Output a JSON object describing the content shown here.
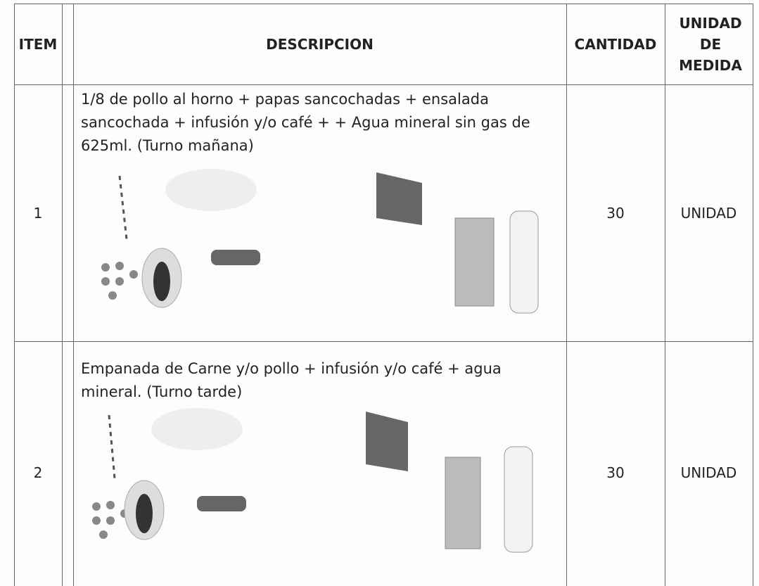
{
  "table": {
    "header": [
      "ITEM",
      "DESCRIPCION",
      "CANTIDAD",
      "UNIDAD DE MEDIDA"
    ],
    "rows": [
      [
        "1",
        "1/8 de pollo al horno + papas sancochadas + ensalada sancochada + infusión y/o café + + Agua mineral sin gas de 625ml. (Turno mañana)",
        "30",
        "UNIDAD"
      ],
      [
        "2",
        "Empanada de Carne y/o pollo + infusión y/o café + agua mineral. (Turno tarde)",
        "30",
        "UNIDAD"
      ]
    ]
  }
}
